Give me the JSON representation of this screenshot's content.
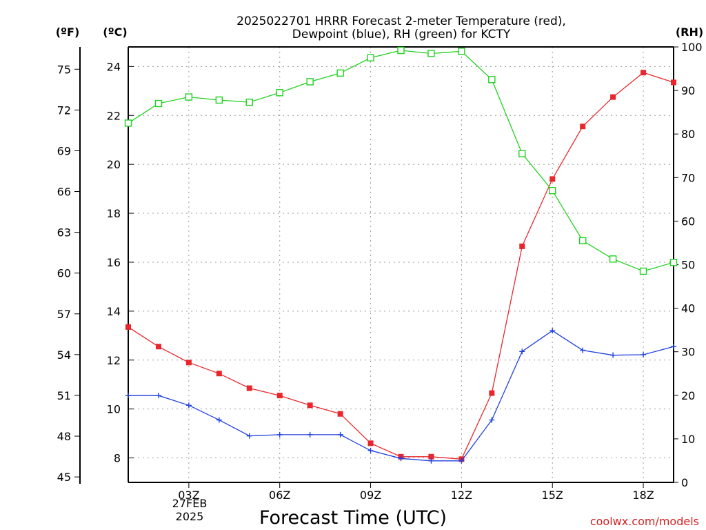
{
  "chart_data": {
    "type": "line",
    "title_lines": [
      "2025022701 HRRR Forecast 2-meter Temperature (red),",
      "Dewpoint (blue), RH (green) for KCTY"
    ],
    "xlabel": "Forecast Time (UTC)",
    "credit": "coolwx.com/models",
    "date_label": [
      "27FEB",
      "2025"
    ],
    "x_hours": [
      1,
      2,
      3,
      4,
      5,
      6,
      7,
      8,
      9,
      10,
      11,
      12,
      13,
      14,
      15,
      16,
      17,
      18,
      19
    ],
    "x_range_hours": [
      1,
      19
    ],
    "x_ticks": [
      {
        "hour": 3,
        "label": "03Z"
      },
      {
        "hour": 6,
        "label": "06Z"
      },
      {
        "hour": 9,
        "label": "09Z"
      },
      {
        "hour": 12,
        "label": "12Z"
      },
      {
        "hour": 15,
        "label": "15Z"
      },
      {
        "hour": 18,
        "label": "18Z"
      }
    ],
    "axes": {
      "celsius": {
        "unit_label": "(ºC)",
        "range": [
          7.0,
          24.8
        ],
        "ticks": [
          8,
          10,
          12,
          14,
          16,
          18,
          20,
          22,
          24
        ]
      },
      "fahrenheit": {
        "unit_label": "(ºF)",
        "ticks": [
          45,
          48,
          51,
          54,
          57,
          60,
          63,
          66,
          69,
          72,
          75
        ]
      },
      "rh": {
        "unit_label": "(RH)",
        "range": [
          0,
          100
        ],
        "ticks": [
          0,
          10,
          20,
          30,
          40,
          50,
          60,
          70,
          80,
          90,
          100
        ]
      }
    },
    "grid": true,
    "series": [
      {
        "name": "Temperature",
        "axis": "celsius",
        "color": "#e8262b",
        "marker": "filled-square",
        "values": [
          13.35,
          12.55,
          11.9,
          11.45,
          10.85,
          10.55,
          10.15,
          9.8,
          8.6,
          8.05,
          8.05,
          7.95,
          10.65,
          16.65,
          19.4,
          21.55,
          22.75,
          23.75,
          23.35
        ]
      },
      {
        "name": "Dewpoint",
        "axis": "celsius",
        "color": "#1f3fe0",
        "marker": "plus",
        "values": [
          10.55,
          10.55,
          10.15,
          9.55,
          8.9,
          8.95,
          8.95,
          8.95,
          8.3,
          7.98,
          7.88,
          7.88,
          9.55,
          12.35,
          13.2,
          12.4,
          12.2,
          12.22,
          12.55
        ]
      },
      {
        "name": "RH",
        "axis": "rh",
        "color": "#1fd11f",
        "marker": "open-square",
        "values": [
          82.5,
          87.0,
          88.5,
          87.8,
          87.3,
          89.5,
          92.0,
          94.0,
          97.5,
          99.2,
          98.5,
          99.0,
          92.5,
          75.5,
          67.0,
          55.5,
          51.3,
          48.5,
          50.5
        ]
      }
    ]
  }
}
